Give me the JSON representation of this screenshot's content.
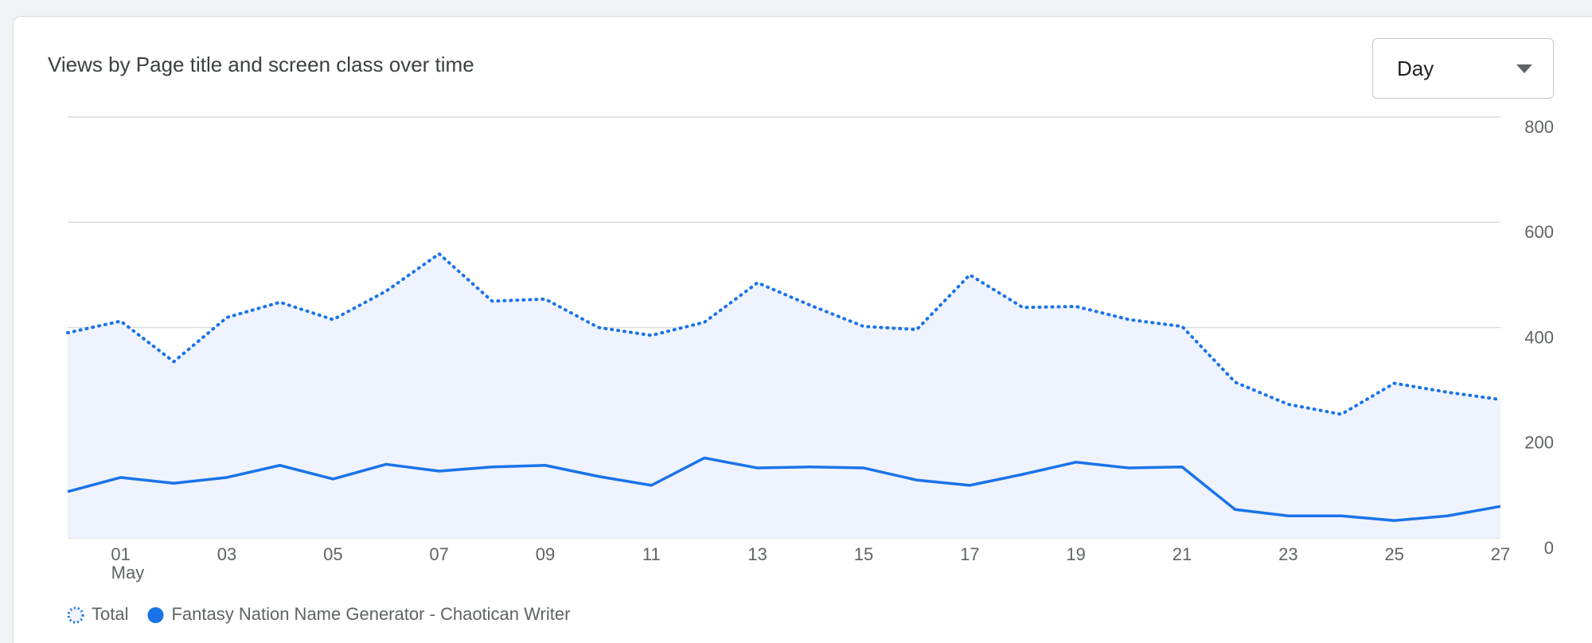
{
  "title": "Views by Page title and screen class over time",
  "dropdown": "Day",
  "chart_data": {
    "type": "line",
    "categories": [
      null,
      "01",
      null,
      "03",
      null,
      "05",
      null,
      "07",
      null,
      "09",
      null,
      "11",
      null,
      "13",
      null,
      "15",
      null,
      "17",
      null,
      "19",
      null,
      "21",
      null,
      "23",
      null,
      "25",
      null,
      "27"
    ],
    "month_label": "May",
    "series": [
      {
        "name": "Total",
        "color": "#1a73e8",
        "style": "dotted",
        "fill": "#eef3fd",
        "values": [
          390,
          412,
          335,
          419,
          448,
          415,
          469,
          540,
          450,
          454,
          400,
          385,
          410,
          485,
          442,
          402,
          396,
          500,
          438,
          440,
          415,
          402,
          296,
          254,
          235,
          294,
          277,
          263
        ]
      },
      {
        "name": "Fantasy Nation Name Generator - Chaotican Writer",
        "color": "#1a73e8",
        "style": "solid",
        "values": [
          88,
          115,
          104,
          115,
          138,
          112,
          140,
          127,
          135,
          138,
          117,
          100,
          152,
          133,
          135,
          133,
          110,
          100,
          121,
          144,
          133,
          135,
          54,
          42,
          42,
          33,
          42,
          60
        ]
      }
    ],
    "ylim": [
      0,
      800
    ],
    "yticks": [
      0,
      200,
      400,
      600,
      800
    ],
    "grid": true
  }
}
